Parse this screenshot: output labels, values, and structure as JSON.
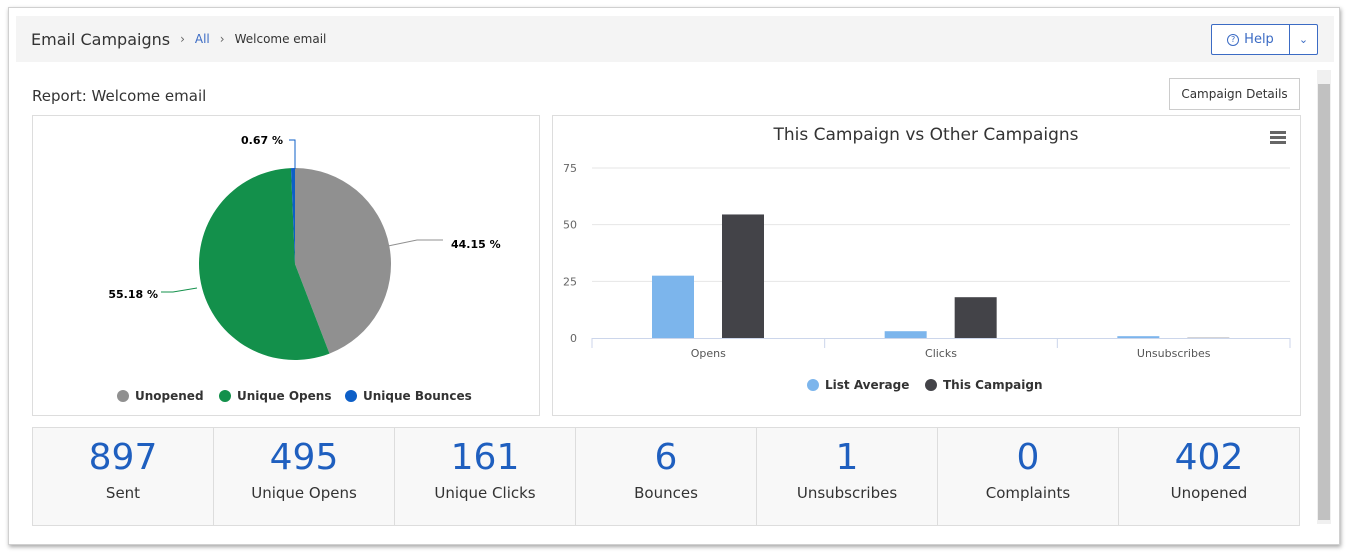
{
  "header": {
    "title": "Email Campaigns",
    "breadcrumb": [
      "All",
      "Welcome email"
    ],
    "help_label": "Help"
  },
  "report_title": "Report: Welcome email",
  "campaign_details_label": "Campaign Details",
  "pie_chart": {
    "type": "pie",
    "slices": [
      {
        "name": "Unopened",
        "value": 44.15,
        "label": "44.15 %",
        "color": "#909090"
      },
      {
        "name": "Unique Opens",
        "value": 55.18,
        "label": "55.18 %",
        "color": "#13904b"
      },
      {
        "name": "Unique Bounces",
        "value": 0.67,
        "label": "0.67 %",
        "color": "#0d5fc7"
      }
    ],
    "legend": "bottom"
  },
  "chart_data": {
    "type": "bar",
    "title": "This Campaign vs Other Campaigns",
    "categories": [
      "Opens",
      "Clicks",
      "Unsubscribes"
    ],
    "series": [
      {
        "name": "List Average",
        "values": [
          27.5,
          3,
          0.8
        ],
        "color": "#7cb5ec"
      },
      {
        "name": "This Campaign",
        "values": [
          54.5,
          18,
          0.1
        ],
        "color": "#434348"
      }
    ],
    "ylim": [
      0,
      75
    ],
    "yticks": [
      0,
      25,
      50,
      75
    ],
    "grid": true,
    "legend": "bottom"
  },
  "stats": [
    {
      "value": "897",
      "label": "Sent"
    },
    {
      "value": "495",
      "label": "Unique Opens"
    },
    {
      "value": "161",
      "label": "Unique Clicks"
    },
    {
      "value": "6",
      "label": "Bounces"
    },
    {
      "value": "1",
      "label": "Unsubscribes"
    },
    {
      "value": "0",
      "label": "Complaints"
    },
    {
      "value": "402",
      "label": "Unopened"
    }
  ]
}
